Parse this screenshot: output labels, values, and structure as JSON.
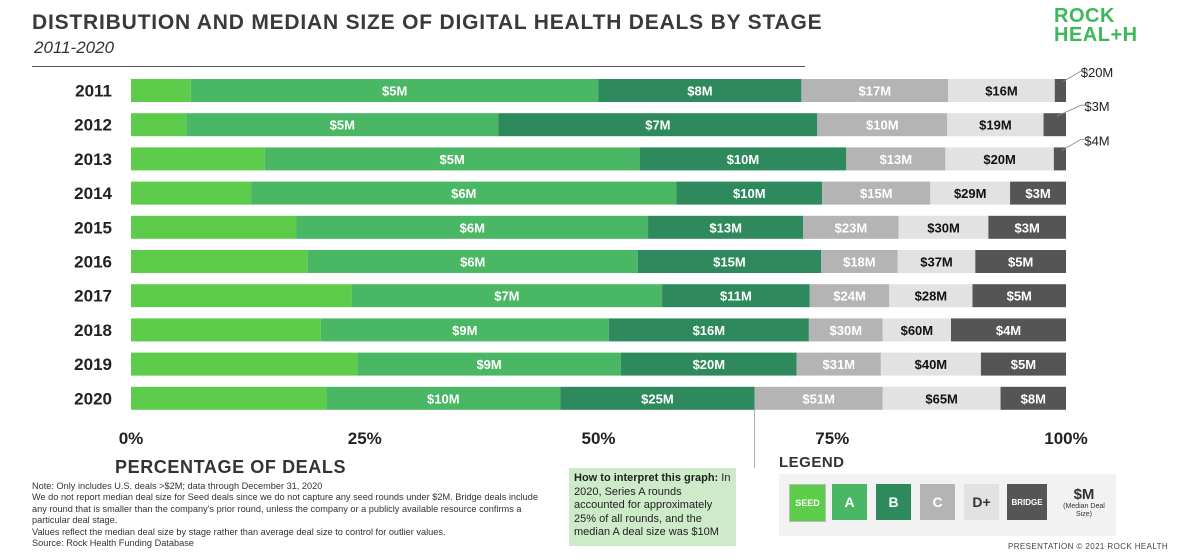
{
  "header": {
    "title": "DISTRIBUTION AND MEDIAN SIZE OF DIGITAL HEALTH DEALS BY STAGE",
    "subtitle": "2011-2020",
    "logo_line1": "ROCK",
    "logo_line2": "HEAL+H"
  },
  "colors": {
    "seed": "#5ccc4a",
    "a": "#49b763",
    "b": "#2e8a5c",
    "c": "#b4b4b4",
    "d": "#e2e2e2",
    "bridge": "#555555"
  },
  "chart_data": {
    "type": "bar",
    "orientation": "horizontal",
    "stacked": true,
    "xlim": [
      0,
      100
    ],
    "xticks": [
      "0%",
      "25%",
      "50%",
      "75%",
      "100%"
    ],
    "xlabel": "PERCENTAGE OF DEALS",
    "categories": [
      "2011",
      "2012",
      "2013",
      "2014",
      "2015",
      "2016",
      "2017",
      "2018",
      "2019",
      "2020"
    ],
    "series": [
      {
        "name": "SEED",
        "key": "seed",
        "values": [
          6.4,
          5.9,
          14.3,
          13.1,
          17.7,
          18.9,
          23.6,
          20.3,
          24.2,
          20.9
        ]
      },
      {
        "name": "A",
        "key": "a",
        "values": [
          43.6,
          33.4,
          40.1,
          46.4,
          37.6,
          35.3,
          33.2,
          30.8,
          28.2,
          25.0
        ]
      },
      {
        "name": "B",
        "key": "b",
        "values": [
          21.7,
          34.1,
          22.1,
          15.9,
          16.6,
          19.6,
          15.8,
          21.4,
          18.8,
          20.8
        ]
      },
      {
        "name": "C",
        "key": "c",
        "values": [
          15.7,
          13.9,
          10.6,
          11.8,
          10.2,
          8.2,
          8.5,
          7.9,
          9.0,
          13.7
        ]
      },
      {
        "name": "D+",
        "key": "d",
        "values": [
          11.4,
          10.3,
          11.6,
          8.7,
          9.6,
          8.3,
          8.9,
          7.3,
          10.7,
          12.6
        ]
      },
      {
        "name": "BRIDGE",
        "key": "bridge",
        "values": [
          1.2,
          2.4,
          1.3,
          6.1,
          8.3,
          9.7,
          10.0,
          12.3,
          9.1,
          7.0
        ]
      }
    ],
    "labels": [
      [
        "",
        "$5M",
        "$8M",
        "$17M",
        "$16M",
        "$20M"
      ],
      [
        "",
        "$5M",
        "$7M",
        "$10M",
        "$19M",
        "$3M"
      ],
      [
        "",
        "$5M",
        "$10M",
        "$13M",
        "$20M",
        "$4M"
      ],
      [
        "",
        "$6M",
        "$10M",
        "$15M",
        "$29M",
        "$3M"
      ],
      [
        "",
        "$6M",
        "$13M",
        "$23M",
        "$30M",
        "$3M"
      ],
      [
        "",
        "$6M",
        "$15M",
        "$18M",
        "$37M",
        "$5M"
      ],
      [
        "",
        "$7M",
        "$11M",
        "$24M",
        "$28M",
        "$5M"
      ],
      [
        "",
        "$9M",
        "$16M",
        "$30M",
        "$60M",
        "$4M"
      ],
      [
        "",
        "$9M",
        "$20M",
        "$31M",
        "$40M",
        "$5M"
      ],
      [
        "",
        "$10M",
        "$25M",
        "$51M",
        "$65M",
        "$8M"
      ]
    ]
  },
  "notes": {
    "line1": "Note: Only includes U.S. deals >$2M; data through December 31, 2020",
    "line2": "We do not report median deal size for Seed deals since we do not capture any seed rounds under $2M. Bridge deals include any round that is smaller than the company's prior round, unless the company or a publicly available resource confirms a particular deal stage.",
    "line3": "Values reflect the median deal size by stage rather than average deal size to control for outlier values.",
    "line4": "Source: Rock Health Funding Database"
  },
  "interpret": {
    "bold": "How to interpret this graph:",
    "text": " In 2020, Series A rounds accounted for approximately 25% of all rounds, and the median A deal size was $10M"
  },
  "legend": {
    "title": "LEGEND",
    "seed": "SEED",
    "a": "A",
    "b": "B",
    "c": "C",
    "d": "D+",
    "bridge": "BRIDGE",
    "m_big": "$M",
    "m_small": "(Median Deal Size)"
  },
  "footer": "PRESENTATION © 2021 ROCK HEALTH"
}
